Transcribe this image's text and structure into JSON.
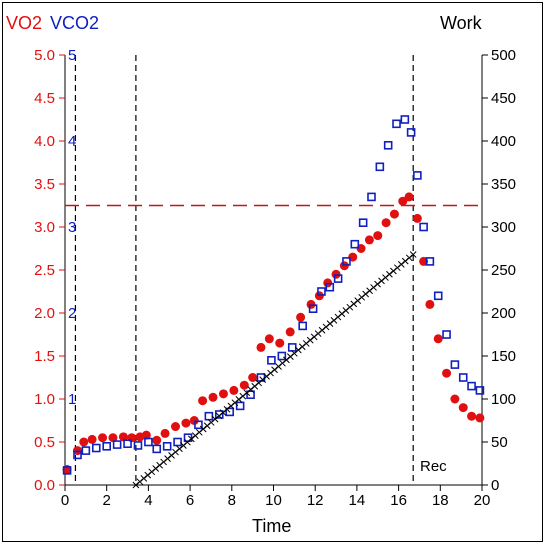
{
  "chart_data": {
    "type": "scatter",
    "labels": {
      "left_title_vo2": "VO2",
      "left_title_vco2": "VCO2",
      "right_title": "Work",
      "xlabel": "Time",
      "recovery_marker": "Rec"
    },
    "x_axis": {
      "min": 0,
      "max": 20,
      "ticks": [
        0,
        2,
        4,
        6,
        8,
        10,
        12,
        14,
        16,
        18,
        20
      ]
    },
    "y_left_vo2": {
      "min": 0,
      "max": 5,
      "ticks": [
        "0.0",
        "0.5",
        "1.0",
        "1.5",
        "2.0",
        "2.5",
        "3.0",
        "3.5",
        "4.0",
        "4.5",
        "5.0"
      ]
    },
    "y_left_vco2": {
      "min": 0,
      "max": 5,
      "ticks": [
        "1",
        "2",
        "3",
        "4",
        "5"
      ]
    },
    "y_right_work": {
      "min": 0,
      "max": 500,
      "ticks": [
        "0",
        "50",
        "100",
        "150",
        "200",
        "250",
        "300",
        "350",
        "400",
        "450",
        "500"
      ]
    },
    "reference_lines": {
      "vertical_dashed_x": [
        0.5,
        3.4,
        16.7
      ],
      "horizontal_dashed_vo2": 3.25
    },
    "series": [
      {
        "name": "VO2",
        "color": "#e01010",
        "marker": "circle",
        "points": [
          [
            0.1,
            0.18
          ],
          [
            0.6,
            0.4
          ],
          [
            0.9,
            0.5
          ],
          [
            1.3,
            0.53
          ],
          [
            1.8,
            0.55
          ],
          [
            2.3,
            0.55
          ],
          [
            2.8,
            0.56
          ],
          [
            3.2,
            0.55
          ],
          [
            3.6,
            0.56
          ],
          [
            3.9,
            0.58
          ],
          [
            4.4,
            0.52
          ],
          [
            4.8,
            0.6
          ],
          [
            5.3,
            0.68
          ],
          [
            5.8,
            0.72
          ],
          [
            6.2,
            0.75
          ],
          [
            6.6,
            0.98
          ],
          [
            7.1,
            1.02
          ],
          [
            7.6,
            1.06
          ],
          [
            8.1,
            1.1
          ],
          [
            8.6,
            1.16
          ],
          [
            9.0,
            1.25
          ],
          [
            9.4,
            1.6
          ],
          [
            9.8,
            1.7
          ],
          [
            10.3,
            1.65
          ],
          [
            10.8,
            1.78
          ],
          [
            11.3,
            1.95
          ],
          [
            11.8,
            2.1
          ],
          [
            12.2,
            2.2
          ],
          [
            12.6,
            2.35
          ],
          [
            13.0,
            2.45
          ],
          [
            13.4,
            2.55
          ],
          [
            13.8,
            2.65
          ],
          [
            14.2,
            2.75
          ],
          [
            14.6,
            2.85
          ],
          [
            15.0,
            2.9
          ],
          [
            15.4,
            3.05
          ],
          [
            15.8,
            3.15
          ],
          [
            16.2,
            3.3
          ],
          [
            16.5,
            3.35
          ],
          [
            16.9,
            3.1
          ],
          [
            17.2,
            2.6
          ],
          [
            17.5,
            2.1
          ],
          [
            17.9,
            1.7
          ],
          [
            18.3,
            1.3
          ],
          [
            18.7,
            1.0
          ],
          [
            19.1,
            0.9
          ],
          [
            19.5,
            0.8
          ],
          [
            19.9,
            0.78
          ]
        ]
      },
      {
        "name": "VCO2",
        "color": "#1020c0",
        "marker": "square",
        "points": [
          [
            0.1,
            0.17
          ],
          [
            0.6,
            0.35
          ],
          [
            1.0,
            0.4
          ],
          [
            1.5,
            0.43
          ],
          [
            2.0,
            0.45
          ],
          [
            2.5,
            0.47
          ],
          [
            3.0,
            0.48
          ],
          [
            3.5,
            0.46
          ],
          [
            4.0,
            0.5
          ],
          [
            4.4,
            0.42
          ],
          [
            4.9,
            0.45
          ],
          [
            5.4,
            0.5
          ],
          [
            5.9,
            0.55
          ],
          [
            6.4,
            0.7
          ],
          [
            6.9,
            0.8
          ],
          [
            7.4,
            0.82
          ],
          [
            7.9,
            0.85
          ],
          [
            8.4,
            0.92
          ],
          [
            8.9,
            1.05
          ],
          [
            9.4,
            1.25
          ],
          [
            9.9,
            1.45
          ],
          [
            10.4,
            1.5
          ],
          [
            10.9,
            1.6
          ],
          [
            11.4,
            1.85
          ],
          [
            11.9,
            2.05
          ],
          [
            12.3,
            2.25
          ],
          [
            12.7,
            2.3
          ],
          [
            13.1,
            2.4
          ],
          [
            13.5,
            2.6
          ],
          [
            13.9,
            2.8
          ],
          [
            14.3,
            3.05
          ],
          [
            14.7,
            3.35
          ],
          [
            15.1,
            3.7
          ],
          [
            15.5,
            3.95
          ],
          [
            15.9,
            4.2
          ],
          [
            16.3,
            4.25
          ],
          [
            16.6,
            4.1
          ],
          [
            16.9,
            3.6
          ],
          [
            17.2,
            3.0
          ],
          [
            17.5,
            2.6
          ],
          [
            17.9,
            2.2
          ],
          [
            18.3,
            1.75
          ],
          [
            18.7,
            1.4
          ],
          [
            19.1,
            1.25
          ],
          [
            19.5,
            1.15
          ],
          [
            19.9,
            1.1
          ]
        ]
      },
      {
        "name": "Work",
        "color": "#000000",
        "marker": "x",
        "points": [
          [
            3.4,
            0
          ],
          [
            16.7,
            268
          ]
        ]
      }
    ]
  }
}
